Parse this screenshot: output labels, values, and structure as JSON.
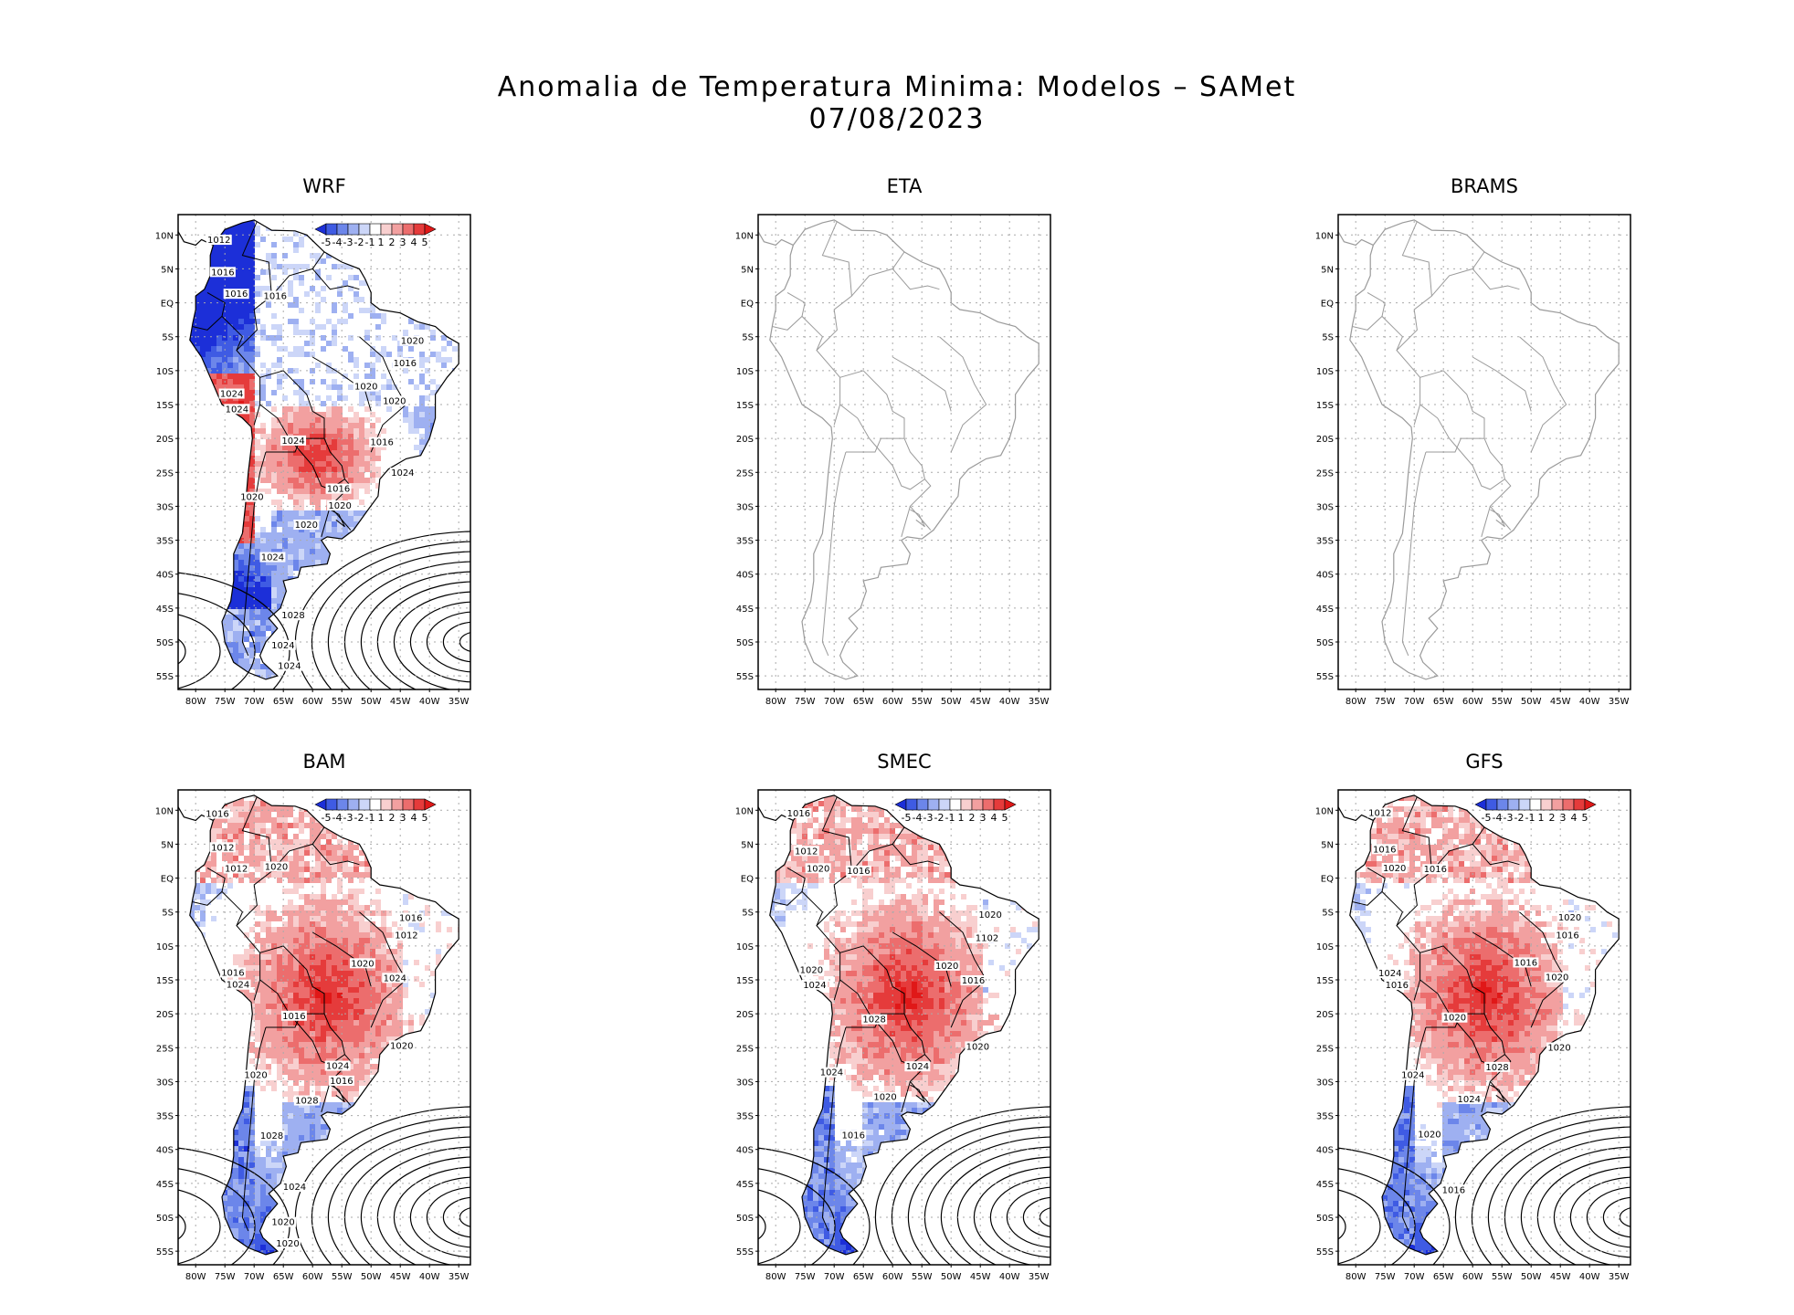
{
  "title": {
    "line1": "Anomalia de Temperatura Minima: Modelos – SAMet",
    "line2": "07/08/2023"
  },
  "axes": {
    "lat_labels": [
      "10N",
      "5N",
      "EQ",
      "5S",
      "10S",
      "15S",
      "20S",
      "25S",
      "30S",
      "35S",
      "40S",
      "45S",
      "50S",
      "55S"
    ],
    "lon_labels": [
      "80W",
      "75W",
      "70W",
      "65W",
      "60W",
      "55W",
      "50W",
      "45W",
      "40W",
      "35W"
    ]
  },
  "colorbar": {
    "labels": [
      "-5",
      "-4",
      "-3",
      "-2",
      "-1",
      "1",
      "2",
      "3",
      "4",
      "5"
    ],
    "colors": [
      "#1c2fd8",
      "#3f5be3",
      "#6c86ea",
      "#9eb0f1",
      "#ccd6f8",
      "#ffffff",
      "#f8cfcf",
      "#f2a0a0",
      "#ec6d6d",
      "#e53b3b",
      "#e01818"
    ]
  },
  "panels": [
    {
      "id": "wrf",
      "name": "WRF",
      "has_data": true,
      "isobars": [
        "1012",
        "1016",
        "1016",
        "1016",
        "1020",
        "1016",
        "1020",
        "1020",
        "1024",
        "1024",
        "1024",
        "1024",
        "1020",
        "1016",
        "1020",
        "1024",
        "1028",
        "1024",
        "1024",
        "1020",
        "1016"
      ],
      "theme": "mixed"
    },
    {
      "id": "eta",
      "name": "ETA",
      "has_data": false,
      "isobars": [],
      "theme": "empty"
    },
    {
      "id": "brams",
      "name": "BRAMS",
      "has_data": false,
      "isobars": [],
      "theme": "empty"
    },
    {
      "id": "bam",
      "name": "BAM",
      "has_data": true,
      "isobars": [
        "1016",
        "1012",
        "1012",
        "1020",
        "1016",
        "1012",
        "1020",
        "1024",
        "1016",
        "1024",
        "1016",
        "1020",
        "1020",
        "1024",
        "1028",
        "1028",
        "1024",
        "1020",
        "1020",
        "1016"
      ],
      "theme": "warm"
    },
    {
      "id": "smec",
      "name": "SMEC",
      "has_data": true,
      "isobars": [
        "1016",
        "1012",
        "1020",
        "1016",
        "1020",
        "1102",
        "1020",
        "1016",
        "1020",
        "1024",
        "1028",
        "1020",
        "1024",
        "1024",
        "1020",
        "1016"
      ],
      "theme": "warm"
    },
    {
      "id": "gfs",
      "name": "GFS",
      "has_data": true,
      "isobars": [
        "1012",
        "1016",
        "1020",
        "1016",
        "1020",
        "1016",
        "1016",
        "1020",
        "1024",
        "1016",
        "1020",
        "1020",
        "1024",
        "1028",
        "1024",
        "1020",
        "1016"
      ],
      "theme": "warm"
    }
  ]
}
